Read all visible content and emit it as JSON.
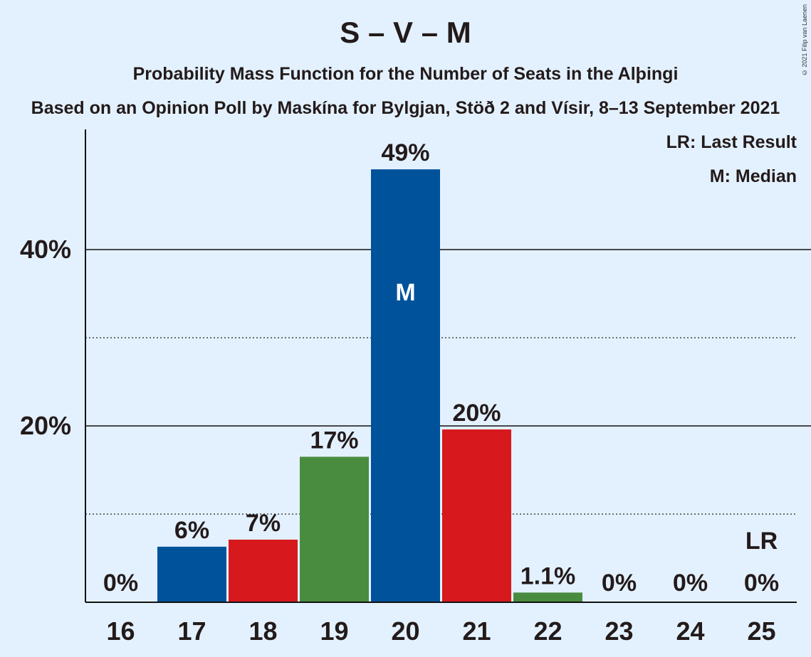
{
  "title": "S – V – M",
  "subtitle": "Probability Mass Function for the Number of Seats in the Alþingi",
  "subtitle2": "Based on an Opinion Poll by Maskína for Bylgjan, Stöð 2 and Vísir, 8–13 September 2021",
  "copyright": "© 2021 Filip van Laenen",
  "legend": {
    "last_result": "LR: Last Result",
    "median": "M: Median"
  },
  "colors": {
    "blue": "#00529b",
    "red": "#d7191e",
    "green": "#4a8c3f",
    "background": "#e3f1ff"
  },
  "chart_data": {
    "type": "bar",
    "categories": [
      "16",
      "17",
      "18",
      "19",
      "20",
      "21",
      "22",
      "23",
      "24",
      "25"
    ],
    "values": [
      0,
      6.3,
      7.1,
      16.5,
      49.1,
      19.6,
      1.1,
      0,
      0,
      0
    ],
    "value_labels": [
      "0%",
      "6%",
      "7%",
      "17%",
      "49%",
      "20%",
      "1.1%",
      "0%",
      "0%",
      "0%"
    ],
    "bar_colors": [
      "#00529b",
      "#00529b",
      "#d7191e",
      "#4a8c3f",
      "#00529b",
      "#d7191e",
      "#4a8c3f",
      "#00529b",
      "#d7191e",
      "#4a8c3f"
    ],
    "yticks": [
      {
        "value": 20,
        "label": "20%"
      },
      {
        "value": 40,
        "label": "40%"
      }
    ],
    "minor_gridlines": [
      10,
      30
    ],
    "ylim": [
      0,
      53
    ],
    "median_category": "20",
    "median_label": "M",
    "last_result_category": "25",
    "last_result_label": "LR",
    "xlabel": "",
    "ylabel": ""
  }
}
